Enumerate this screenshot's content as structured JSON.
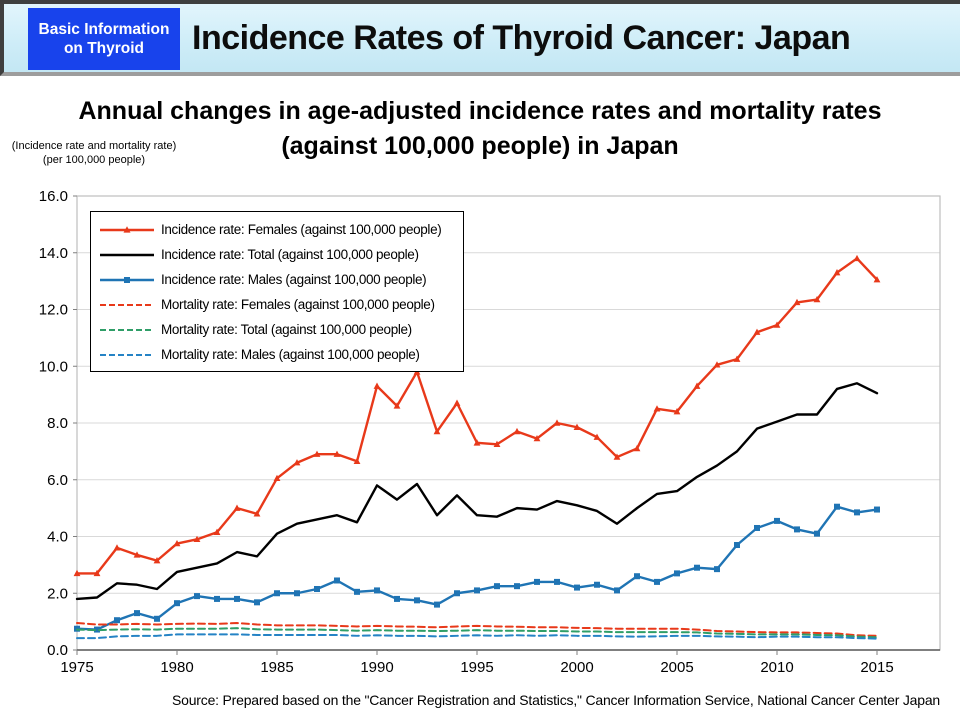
{
  "header": {
    "badge": "Basic Information on Thyroid",
    "title": "Incidence Rates of Thyroid Cancer: Japan"
  },
  "subtitle": {
    "line1": "Annual changes in age-adjusted incidence rates and mortality rates",
    "line2": "(against 100,000 people) in Japan"
  },
  "unit": {
    "line1": "(Incidence rate and mortality rate)",
    "line2": "(per 100,000 people)"
  },
  "source": "Source: Prepared based on the \"Cancer Registration and Statistics,\" Cancer Information Service, National Cancer Center Japan",
  "colors": {
    "badge_blue": "#1843ec",
    "header_band_top": "#e2f5fc",
    "header_band_bottom": "#c3e7f4",
    "gridline": "#d9d9d9",
    "plot_border": "#bfbfbf",
    "axis": "#595959"
  },
  "chart_data": {
    "type": "line",
    "title": "Annual changes in age-adjusted incidence rates and mortality rates (against 100,000 people) in Japan",
    "xlabel": "",
    "ylabel": "(Incidence rate and mortality rate) (per 100,000 people)",
    "ylim": [
      0,
      16
    ],
    "grid": true,
    "legend_position": "upper-left-inside",
    "y_ticks": [
      "0.0",
      "2.0",
      "4.0",
      "6.0",
      "8.0",
      "10.0",
      "12.0",
      "14.0",
      "16.0"
    ],
    "x_ticks": [
      "1975",
      "1980",
      "1985",
      "1990",
      "1995",
      "2000",
      "2005",
      "2010",
      "2015"
    ],
    "years": [
      1975,
      1976,
      1977,
      1978,
      1979,
      1980,
      1981,
      1982,
      1983,
      1984,
      1985,
      1986,
      1987,
      1988,
      1989,
      1990,
      1991,
      1992,
      1993,
      1994,
      1995,
      1996,
      1997,
      1998,
      1999,
      2000,
      2001,
      2002,
      2003,
      2004,
      2005,
      2006,
      2007,
      2008,
      2009,
      2010,
      2011,
      2012,
      2013,
      2014,
      2015
    ],
    "series": [
      {
        "label": "Incidence rate: Females (against 100,000 people)",
        "color": "#e8391a",
        "style": "solid",
        "marker": "triangle",
        "values": [
          2.7,
          2.7,
          3.6,
          3.35,
          3.15,
          3.75,
          3.9,
          4.15,
          5.0,
          4.8,
          6.05,
          6.6,
          6.9,
          6.9,
          6.65,
          9.3,
          8.6,
          9.8,
          7.7,
          8.7,
          7.3,
          7.25,
          7.7,
          7.45,
          8.0,
          7.85,
          7.5,
          6.8,
          7.1,
          8.5,
          8.4,
          9.3,
          10.05,
          10.25,
          11.2,
          11.45,
          12.25,
          12.35,
          13.3,
          13.8,
          13.05
        ]
      },
      {
        "label": "Incidence rate: Total (against 100,000 people)",
        "color": "#000000",
        "style": "solid",
        "marker": "none",
        "values": [
          1.8,
          1.85,
          2.35,
          2.3,
          2.15,
          2.75,
          2.9,
          3.05,
          3.45,
          3.3,
          4.1,
          4.45,
          4.6,
          4.75,
          4.5,
          5.8,
          5.3,
          5.85,
          4.75,
          5.45,
          4.75,
          4.7,
          5.0,
          4.95,
          5.25,
          5.1,
          4.9,
          4.45,
          5.0,
          5.5,
          5.6,
          6.1,
          6.5,
          7.0,
          7.8,
          8.05,
          8.3,
          8.3,
          9.2,
          9.4,
          9.05
        ]
      },
      {
        "label": "Incidence rate: Males (against 100,000 people)",
        "color": "#1f74b4",
        "style": "solid",
        "marker": "square",
        "values": [
          0.75,
          0.72,
          1.05,
          1.3,
          1.1,
          1.65,
          1.9,
          1.8,
          1.8,
          1.68,
          2.0,
          2.0,
          2.15,
          2.45,
          2.05,
          2.1,
          1.8,
          1.75,
          1.6,
          2.0,
          2.1,
          2.25,
          2.25,
          2.4,
          2.4,
          2.2,
          2.3,
          2.1,
          2.6,
          2.4,
          2.7,
          2.9,
          2.85,
          3.7,
          4.3,
          4.55,
          4.25,
          4.1,
          5.05,
          4.85,
          4.95
        ]
      },
      {
        "label": "Mortality rate: Females (against 100,000 people)",
        "color": "#e8391a",
        "style": "dashed",
        "marker": "none",
        "values": [
          0.95,
          0.9,
          0.9,
          0.92,
          0.9,
          0.92,
          0.93,
          0.92,
          0.95,
          0.9,
          0.87,
          0.87,
          0.87,
          0.85,
          0.83,
          0.85,
          0.83,
          0.82,
          0.8,
          0.83,
          0.85,
          0.83,
          0.82,
          0.8,
          0.8,
          0.78,
          0.77,
          0.75,
          0.75,
          0.75,
          0.75,
          0.72,
          0.67,
          0.65,
          0.63,
          0.62,
          0.62,
          0.6,
          0.58,
          0.52,
          0.5
        ]
      },
      {
        "label": "Mortality rate: Total (against 100,000 people)",
        "color": "#2f9e68",
        "style": "dashed",
        "marker": "none",
        "values": [
          0.72,
          0.7,
          0.72,
          0.73,
          0.72,
          0.75,
          0.75,
          0.75,
          0.77,
          0.73,
          0.72,
          0.72,
          0.72,
          0.7,
          0.68,
          0.7,
          0.68,
          0.68,
          0.67,
          0.68,
          0.7,
          0.68,
          0.68,
          0.67,
          0.67,
          0.65,
          0.65,
          0.63,
          0.63,
          0.63,
          0.63,
          0.62,
          0.58,
          0.57,
          0.55,
          0.55,
          0.55,
          0.53,
          0.52,
          0.47,
          0.45
        ]
      },
      {
        "label": "Mortality rate: Males (against 100,000 people)",
        "color": "#2583c5",
        "style": "dashed",
        "marker": "none",
        "values": [
          0.42,
          0.42,
          0.48,
          0.5,
          0.5,
          0.55,
          0.55,
          0.55,
          0.55,
          0.53,
          0.53,
          0.53,
          0.53,
          0.53,
          0.5,
          0.52,
          0.5,
          0.5,
          0.48,
          0.5,
          0.52,
          0.5,
          0.52,
          0.5,
          0.52,
          0.5,
          0.5,
          0.48,
          0.47,
          0.48,
          0.5,
          0.5,
          0.48,
          0.47,
          0.45,
          0.47,
          0.47,
          0.45,
          0.45,
          0.42,
          0.4
        ]
      }
    ]
  }
}
